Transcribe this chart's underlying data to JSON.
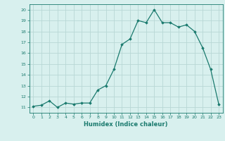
{
  "x": [
    0,
    1,
    2,
    3,
    4,
    5,
    6,
    7,
    8,
    9,
    10,
    11,
    12,
    13,
    14,
    15,
    16,
    17,
    18,
    19,
    20,
    21,
    22,
    23
  ],
  "y": [
    11.1,
    11.2,
    11.6,
    11.0,
    11.4,
    11.3,
    11.4,
    11.4,
    12.6,
    13.0,
    14.5,
    16.8,
    17.3,
    19.0,
    18.8,
    20.0,
    18.8,
    18.8,
    18.4,
    18.6,
    18.0,
    16.5,
    14.5,
    11.3
  ],
  "xlabel": "Humidex (Indice chaleur)",
  "ylim": [
    10.5,
    20.5
  ],
  "xlim": [
    -0.5,
    23.5
  ],
  "line_color": "#1a7a6e",
  "marker": "D",
  "marker_size": 1.8,
  "bg_color": "#d8f0ee",
  "grid_color": "#b8d8d5",
  "tick_color": "#1a7a6e",
  "label_color": "#1a7a6e",
  "yticks": [
    11,
    12,
    13,
    14,
    15,
    16,
    17,
    18,
    19,
    20
  ],
  "xticks": [
    0,
    1,
    2,
    3,
    4,
    5,
    6,
    7,
    8,
    9,
    10,
    11,
    12,
    13,
    14,
    15,
    16,
    17,
    18,
    19,
    20,
    21,
    22,
    23
  ]
}
